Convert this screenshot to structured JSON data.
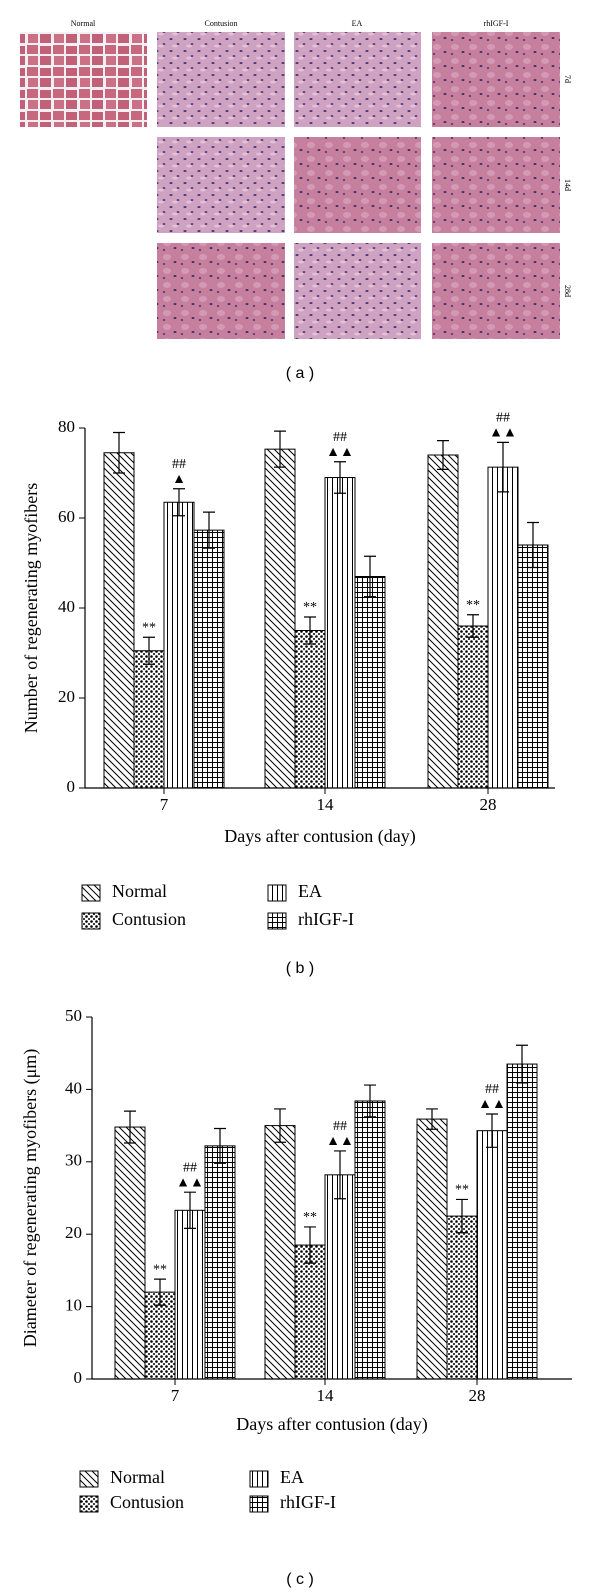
{
  "image_panel": {
    "columns": [
      "Normal",
      "Contusion",
      "EA",
      "rhIGF-I"
    ],
    "rows": [
      "7d",
      "14d",
      "28d"
    ],
    "caption": "( a )"
  },
  "chart_data": [
    {
      "type": "bar",
      "caption": "( b )",
      "x_label": "Days after contusion (day)",
      "y_label": "Number of regenerating myofibers",
      "categories": [
        "7",
        "14",
        "28"
      ],
      "ylim": [
        0,
        80
      ],
      "yticks": [
        0,
        20,
        40,
        60,
        80
      ],
      "series": [
        {
          "name": "Normal",
          "color": "#000000",
          "pattern": "diagonal",
          "values": [
            74.5,
            75.3,
            74
          ],
          "errors": [
            4.5,
            4,
            3.2
          ]
        },
        {
          "name": "Contusion",
          "color": "#000000",
          "pattern": "dots",
          "values": [
            30.5,
            35,
            36
          ],
          "errors": [
            3,
            3,
            2.5
          ],
          "annotations": [
            [
              "**"
            ],
            [
              "**"
            ],
            [
              "**"
            ]
          ]
        },
        {
          "name": "EA",
          "color": "#000000",
          "pattern": "vertical",
          "values": [
            63.5,
            69,
            71.3
          ],
          "errors": [
            3,
            3.5,
            5.5
          ],
          "annotations": [
            [
              "##",
              "▲"
            ],
            [
              "##",
              "▲▲"
            ],
            [
              "##",
              "▲▲"
            ]
          ]
        },
        {
          "name": "rhIGF-I",
          "color": "#000000",
          "pattern": "grid",
          "values": [
            57.3,
            47,
            54
          ],
          "errors": [
            4,
            4.5,
            5
          ]
        }
      ]
    },
    {
      "type": "bar",
      "caption": "( c )",
      "x_label": "Days after contusion (day)",
      "y_label": "Diameter of regenerating myofibers (μm)",
      "categories": [
        "7",
        "14",
        "28"
      ],
      "ylim": [
        0,
        50
      ],
      "yticks": [
        0,
        10,
        20,
        30,
        40,
        50
      ],
      "series": [
        {
          "name": "Normal",
          "color": "#000000",
          "pattern": "diagonal",
          "values": [
            34.8,
            35,
            35.9
          ],
          "errors": [
            2.2,
            2.3,
            1.4
          ]
        },
        {
          "name": "Contusion",
          "color": "#000000",
          "pattern": "dots",
          "values": [
            12,
            18.5,
            22.5
          ],
          "errors": [
            1.8,
            2.5,
            2.3
          ],
          "annotations": [
            [
              "**"
            ],
            [
              "**"
            ],
            [
              "**"
            ]
          ]
        },
        {
          "name": "EA",
          "color": "#000000",
          "pattern": "vertical",
          "values": [
            23.3,
            28.2,
            34.3
          ],
          "errors": [
            2.5,
            3.3,
            2.3
          ],
          "annotations": [
            [
              "##",
              "▲▲"
            ],
            [
              "##",
              "▲▲"
            ],
            [
              "##",
              "▲▲"
            ]
          ]
        },
        {
          "name": "rhIGF-I",
          "color": "#000000",
          "pattern": "grid",
          "values": [
            32.2,
            38.4,
            43.5
          ],
          "errors": [
            2.4,
            2.2,
            2.6
          ]
        }
      ]
    }
  ]
}
